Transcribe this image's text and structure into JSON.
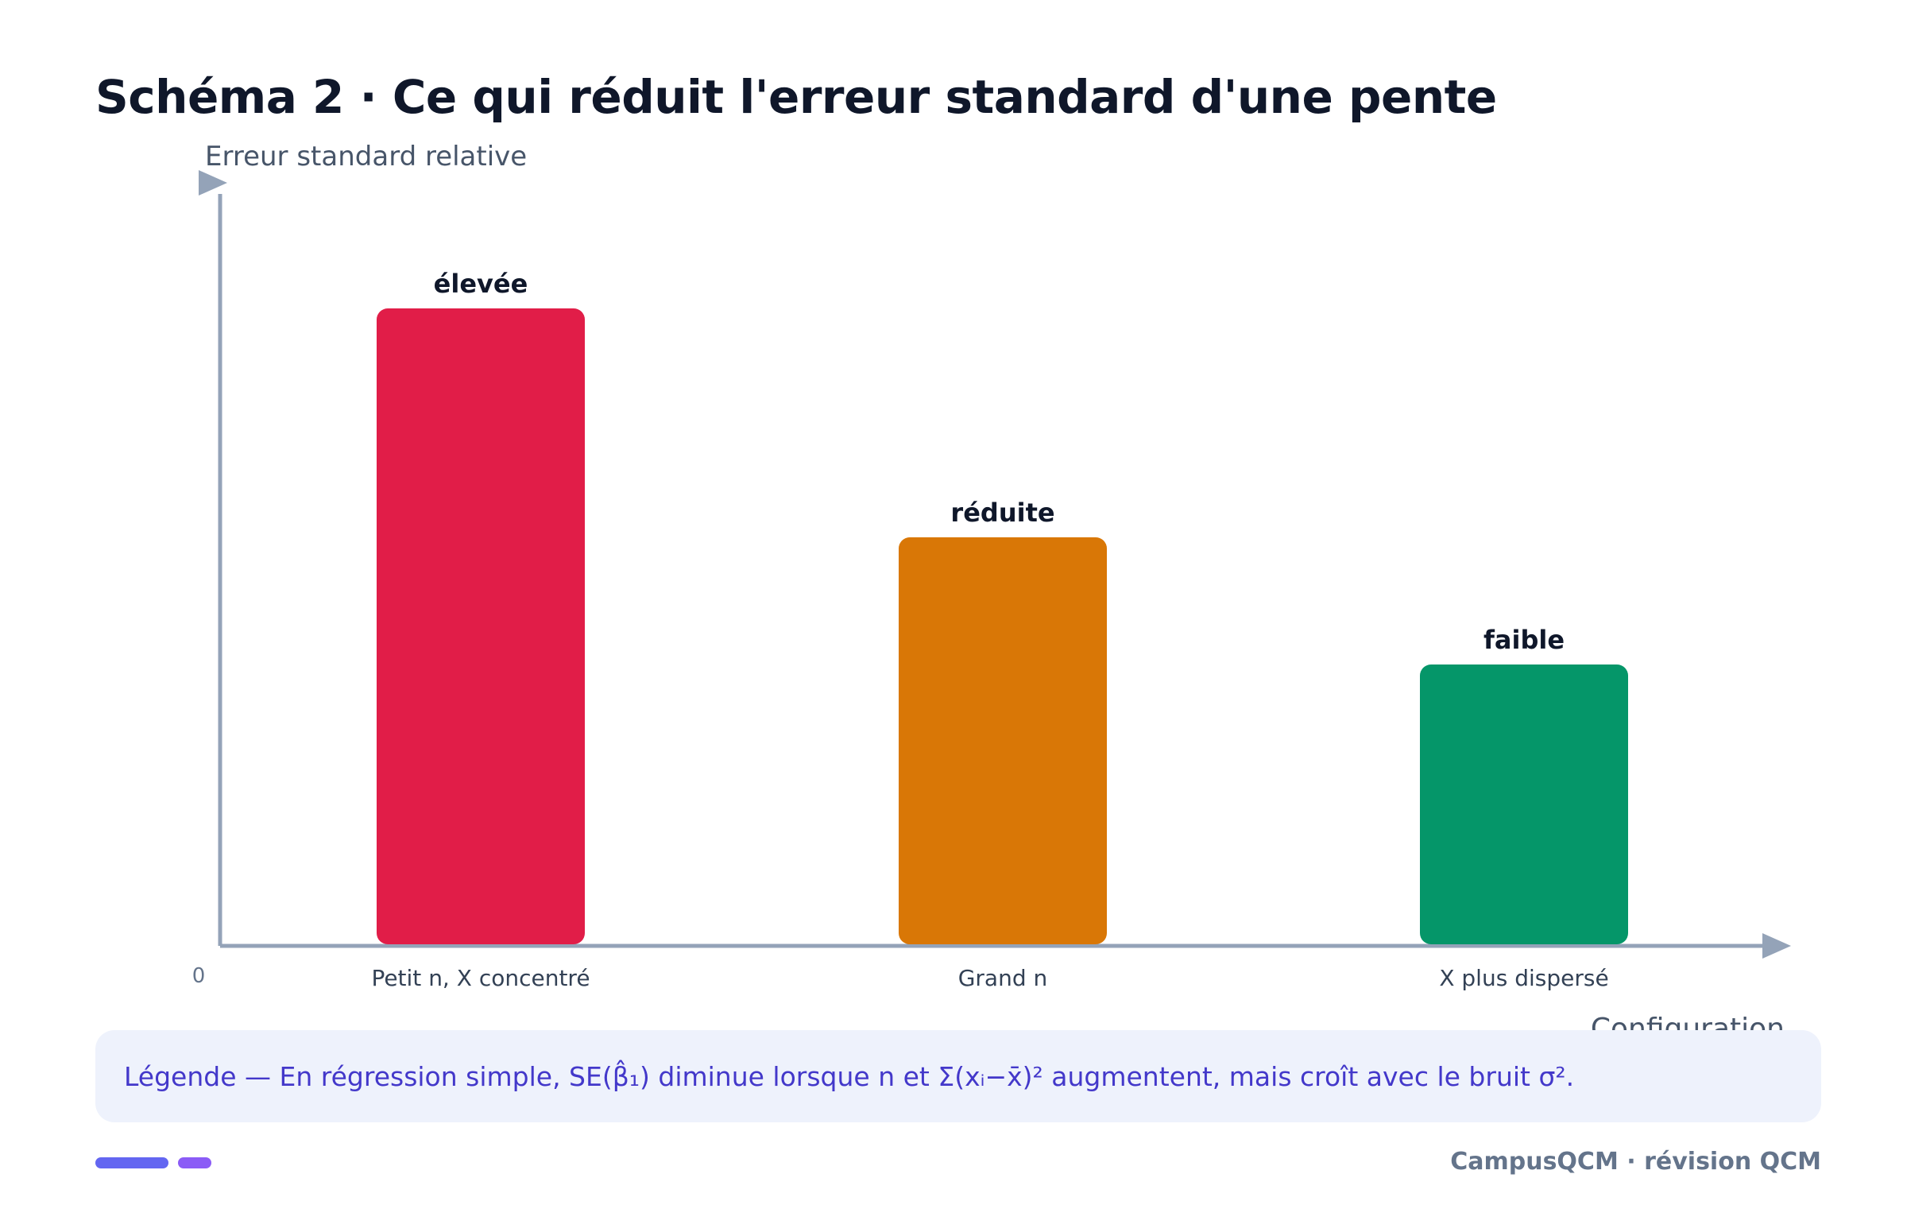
{
  "title": "Schéma 2 · Ce qui réduit l'erreur standard d'une pente",
  "chart_data": {
    "type": "bar",
    "categories": [
      "Petit n, X concentré",
      "Grand n",
      "X plus dispersé"
    ],
    "values": [
      1.0,
      0.64,
      0.44
    ],
    "data_labels": [
      "élevée",
      "réduite",
      "faible"
    ],
    "colors": [
      "#e11d48",
      "#d97706",
      "#059669"
    ],
    "ylabel": "Erreur standard relative",
    "xlabel": "Configuration",
    "y_tick_labels": [
      "0"
    ],
    "ylim": [
      0,
      1.2
    ],
    "grid": false,
    "axis_color": "#94a3b8"
  },
  "legend": {
    "text": "Légende — En régression simple, SE(β̂₁) diminue lorsque n et Σ(xᵢ−x̄)² augmentent, mais croît avec le bruit σ²."
  },
  "footer": {
    "brand": "CampusQCM · révision QCM"
  }
}
